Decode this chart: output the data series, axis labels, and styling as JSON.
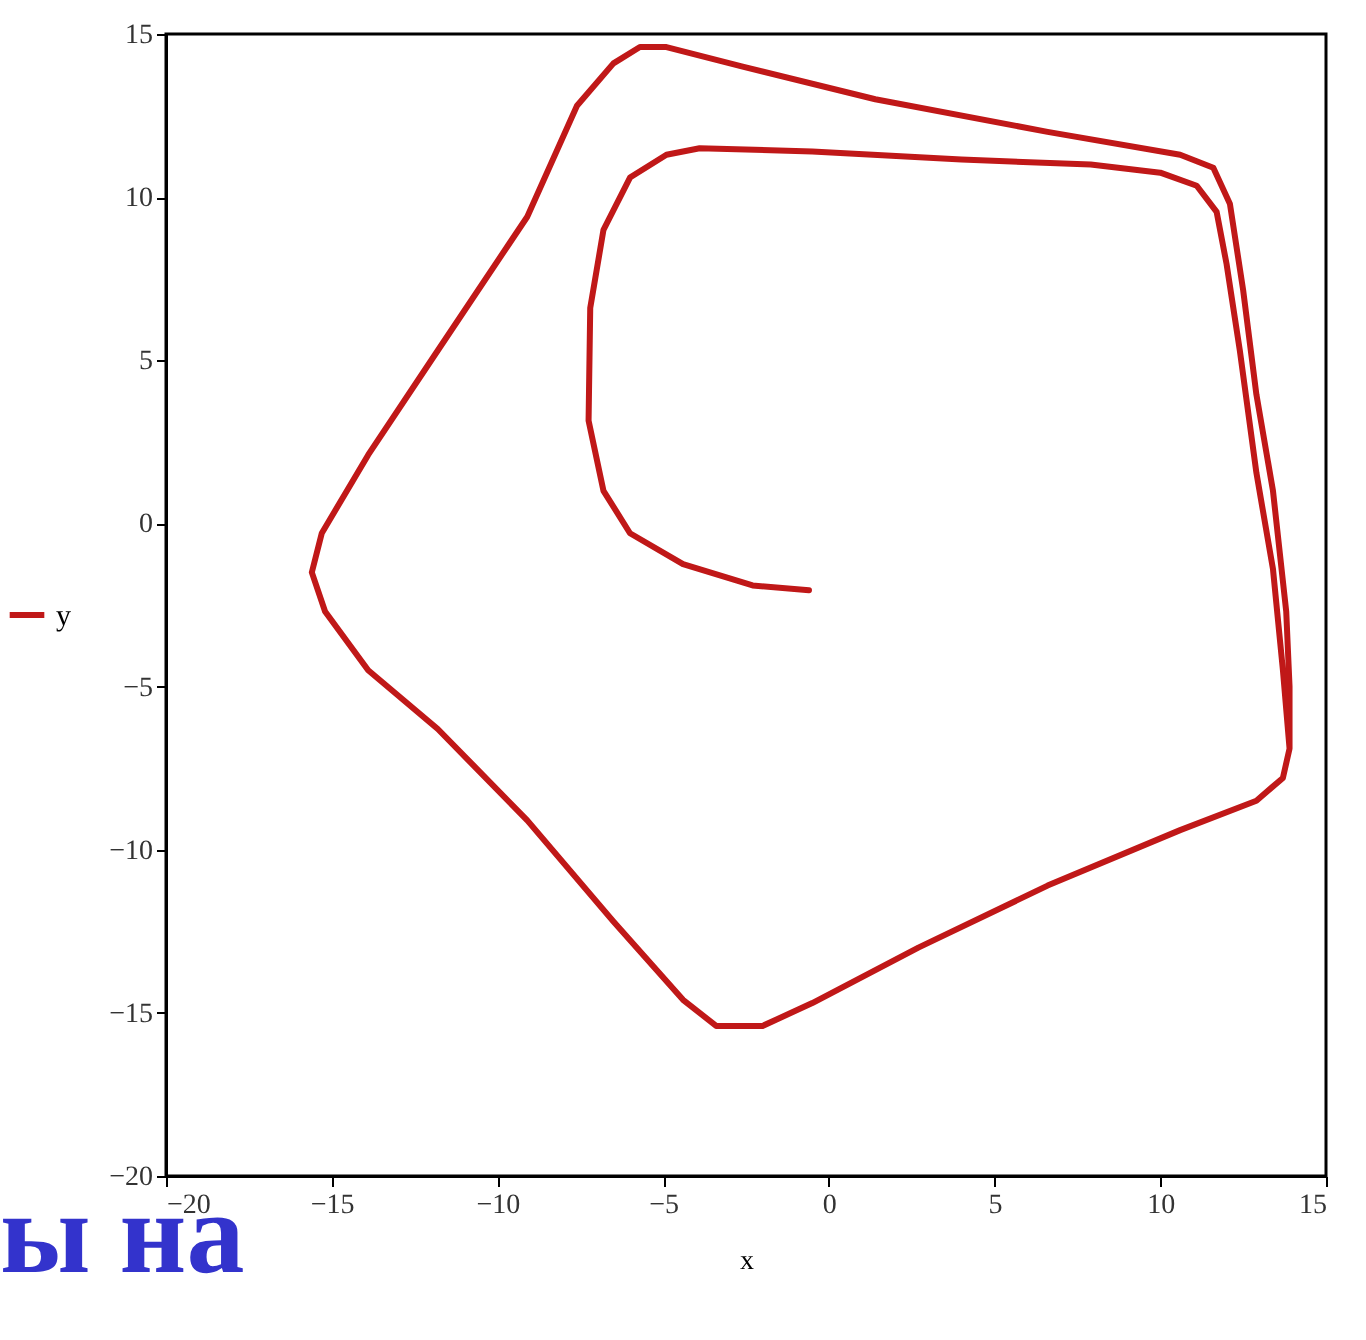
{
  "chart_data": {
    "type": "line",
    "xlabel": "x",
    "legend": "left",
    "marker": "none",
    "line_style": "solid",
    "grid": false,
    "xlim": [
      -20,
      15
    ],
    "xticks": [
      -20,
      -15,
      -10,
      -5,
      0,
      5,
      10,
      15
    ],
    "ylim": [
      -20,
      15
    ],
    "yticks": [
      -20,
      -15,
      -10,
      -5,
      0,
      5,
      10,
      15
    ],
    "annotations": [
      "ы на"
    ],
    "series": [
      {
        "name": "y",
        "color": "#c01818",
        "x": [
          -0.6,
          -2.3,
          -4.4,
          -6.0,
          -6.8,
          -7.25,
          -7.2,
          -6.8,
          -6.0,
          -4.9,
          -3.9,
          -0.5,
          4.0,
          7.9,
          10.0,
          11.1,
          11.7,
          12.0,
          12.4,
          12.9,
          13.4,
          13.7,
          13.9,
          13.7,
          12.9,
          10.6,
          6.6,
          2.7,
          -0.5,
          -2.0,
          -3.4,
          -4.4,
          -6.5,
          -9.1,
          -11.8,
          -13.9,
          -15.2,
          -15.6,
          -15.3,
          -13.9,
          -11.8,
          -9.1,
          -7.6,
          -6.5,
          -5.7,
          -4.9,
          -2.6,
          1.4,
          6.6,
          10.6,
          11.6,
          12.1,
          12.5,
          12.9,
          13.4,
          13.8,
          13.9,
          13.9
        ],
        "values": [
          -2.05,
          -1.9,
          -1.25,
          -0.3,
          1.0,
          3.15,
          6.6,
          9.0,
          10.6,
          11.3,
          11.5,
          11.4,
          11.15,
          11.0,
          10.75,
          10.35,
          9.55,
          7.95,
          5.3,
          1.55,
          -1.4,
          -4.5,
          -6.9,
          -7.8,
          -8.5,
          -9.4,
          -11.1,
          -13.0,
          -14.7,
          -15.4,
          -15.4,
          -14.6,
          -12.2,
          -9.1,
          -6.3,
          -4.5,
          -2.7,
          -1.5,
          -0.3,
          2.1,
          5.3,
          9.4,
          12.8,
          14.1,
          14.6,
          14.6,
          14.0,
          13.0,
          12.0,
          11.3,
          10.9,
          9.8,
          7.15,
          3.95,
          1.0,
          -2.7,
          -5.0,
          -6.9
        ]
      }
    ]
  }
}
